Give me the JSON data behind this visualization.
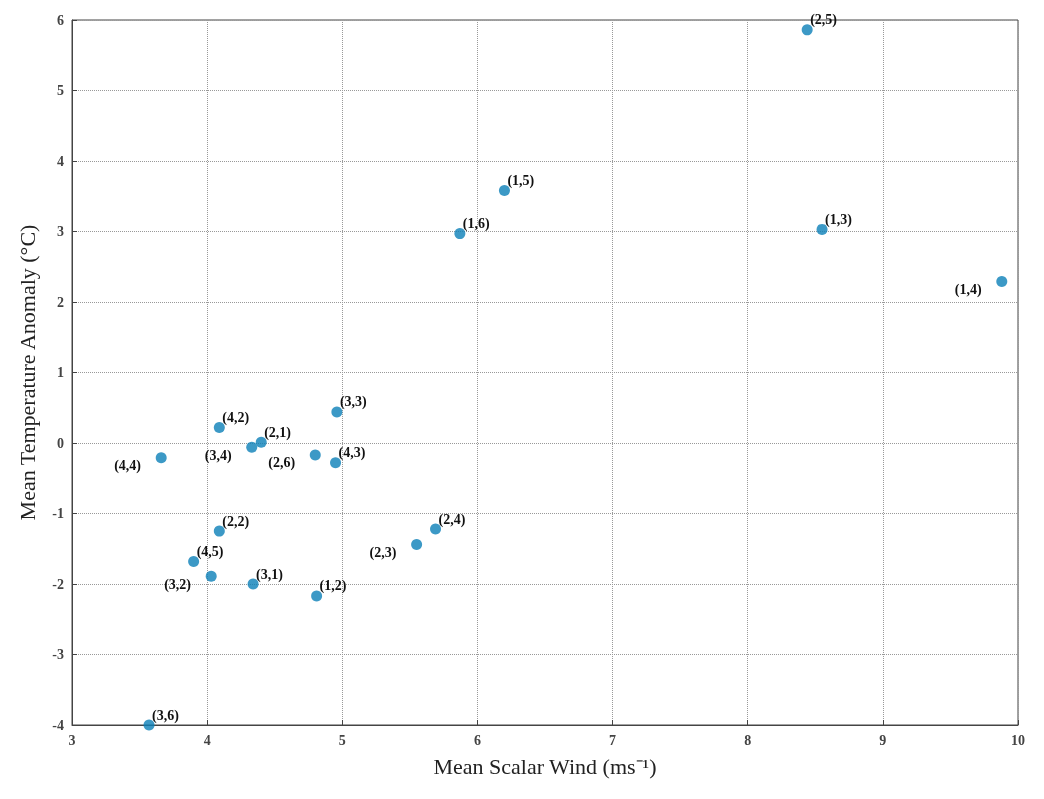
{
  "chart_data": {
    "type": "scatter",
    "xlabel": "Mean Scalar Wind (ms⁻¹)",
    "ylabel": "Mean Temperature Anomaly (°C)",
    "x": [
      8.44,
      6.2,
      5.87,
      8.55,
      9.88,
      4.96,
      4.09,
      4.4,
      4.33,
      4.8,
      4.95,
      3.66,
      4.09,
      5.69,
      5.55,
      3.9,
      4.03,
      4.34,
      4.81,
      3.57
    ],
    "values": [
      5.86,
      3.58,
      2.97,
      3.03,
      2.29,
      0.44,
      0.22,
      0.01,
      -0.06,
      -0.17,
      -0.28,
      -0.21,
      -1.25,
      -1.22,
      -1.44,
      -1.68,
      -1.89,
      -2.0,
      -2.17,
      -4.0
    ],
    "color": "#0b80b8",
    "marker": "circle",
    "grid": true,
    "xlim": [
      3,
      10
    ],
    "xticks": [
      3,
      4,
      5,
      6,
      7,
      8,
      9,
      10
    ],
    "ylim": [
      -4,
      6
    ],
    "yticks": [
      -4,
      -3,
      -2,
      -1,
      0,
      1,
      2,
      3,
      4,
      5,
      6
    ],
    "annotations": [
      {
        "text": "(2,5)",
        "x": 8.44,
        "y": 5.86
      },
      {
        "text": "(1,5)",
        "x": 6.2,
        "y": 3.58
      },
      {
        "text": "(1,6)",
        "x": 5.87,
        "y": 2.97
      },
      {
        "text": "(1,3)",
        "x": 8.55,
        "y": 3.03
      },
      {
        "text": "(1,4)",
        "x": 9.88,
        "y": 2.29
      },
      {
        "text": "(3,3)",
        "x": 4.96,
        "y": 0.44
      },
      {
        "text": "(4,2)",
        "x": 4.09,
        "y": 0.22
      },
      {
        "text": "(2,1)",
        "x": 4.4,
        "y": 0.01
      },
      {
        "text": "(3,4)",
        "x": 4.33,
        "y": -0.06
      },
      {
        "text": "(2,6)",
        "x": 4.8,
        "y": -0.17
      },
      {
        "text": "(4,3)",
        "x": 4.95,
        "y": -0.28
      },
      {
        "text": "(4,4)",
        "x": 3.66,
        "y": -0.21
      },
      {
        "text": "(2,2)",
        "x": 4.09,
        "y": -1.25
      },
      {
        "text": "(2,4)",
        "x": 5.69,
        "y": -1.22
      },
      {
        "text": "(2,3)",
        "x": 5.55,
        "y": -1.44
      },
      {
        "text": "(4,5)",
        "x": 3.9,
        "y": -1.68
      },
      {
        "text": "(3,2)",
        "x": 4.03,
        "y": -1.89
      },
      {
        "text": "(3,1)",
        "x": 4.34,
        "y": -2.0
      },
      {
        "text": "(1,2)",
        "x": 4.81,
        "y": -2.17
      },
      {
        "text": "(3,6)",
        "x": 3.57,
        "y": -4.0
      }
    ]
  }
}
